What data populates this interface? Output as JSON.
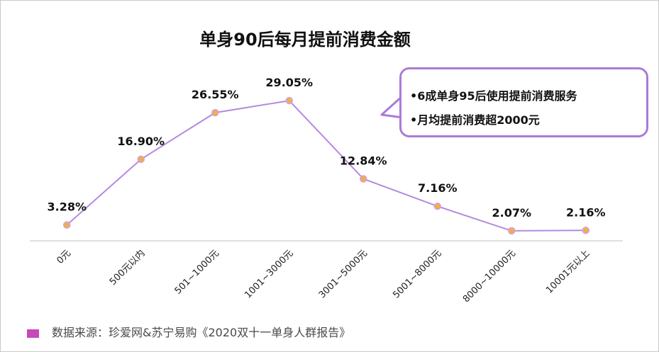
{
  "chart_data": {
    "type": "line",
    "title": "单身90后每月提前消费金额",
    "categories": [
      "0元",
      "500元以内",
      "501~1000元",
      "1001~3000元",
      "3001~5000元",
      "5001~8000元",
      "8000~10000元",
      "10001元以上"
    ],
    "values": [
      3.28,
      16.9,
      26.55,
      29.05,
      12.84,
      7.16,
      2.07,
      2.16
    ],
    "data_labels": [
      "3.28%",
      "16.90%",
      "26.55%",
      "29.05%",
      "12.84%",
      "7.16%",
      "2.07%",
      "2.16%"
    ],
    "ylim": [
      0,
      32
    ],
    "grid": false,
    "xlabel": "",
    "ylabel": "",
    "colors": {
      "line": "#b38ae0",
      "marker": "#f2b040",
      "marker_stroke": "#cfa0f0",
      "axis": "#d6d6d6"
    }
  },
  "callout": {
    "lines": [
      "•6成单身95后使用提前消费服务",
      "•月均提前消费超2000元"
    ],
    "border_color": "#a97cd8"
  },
  "source": {
    "text": "数据来源：珍爱网&苏宁易购《2020双十一单身人群报告》",
    "marker_color": "#c848b8"
  }
}
